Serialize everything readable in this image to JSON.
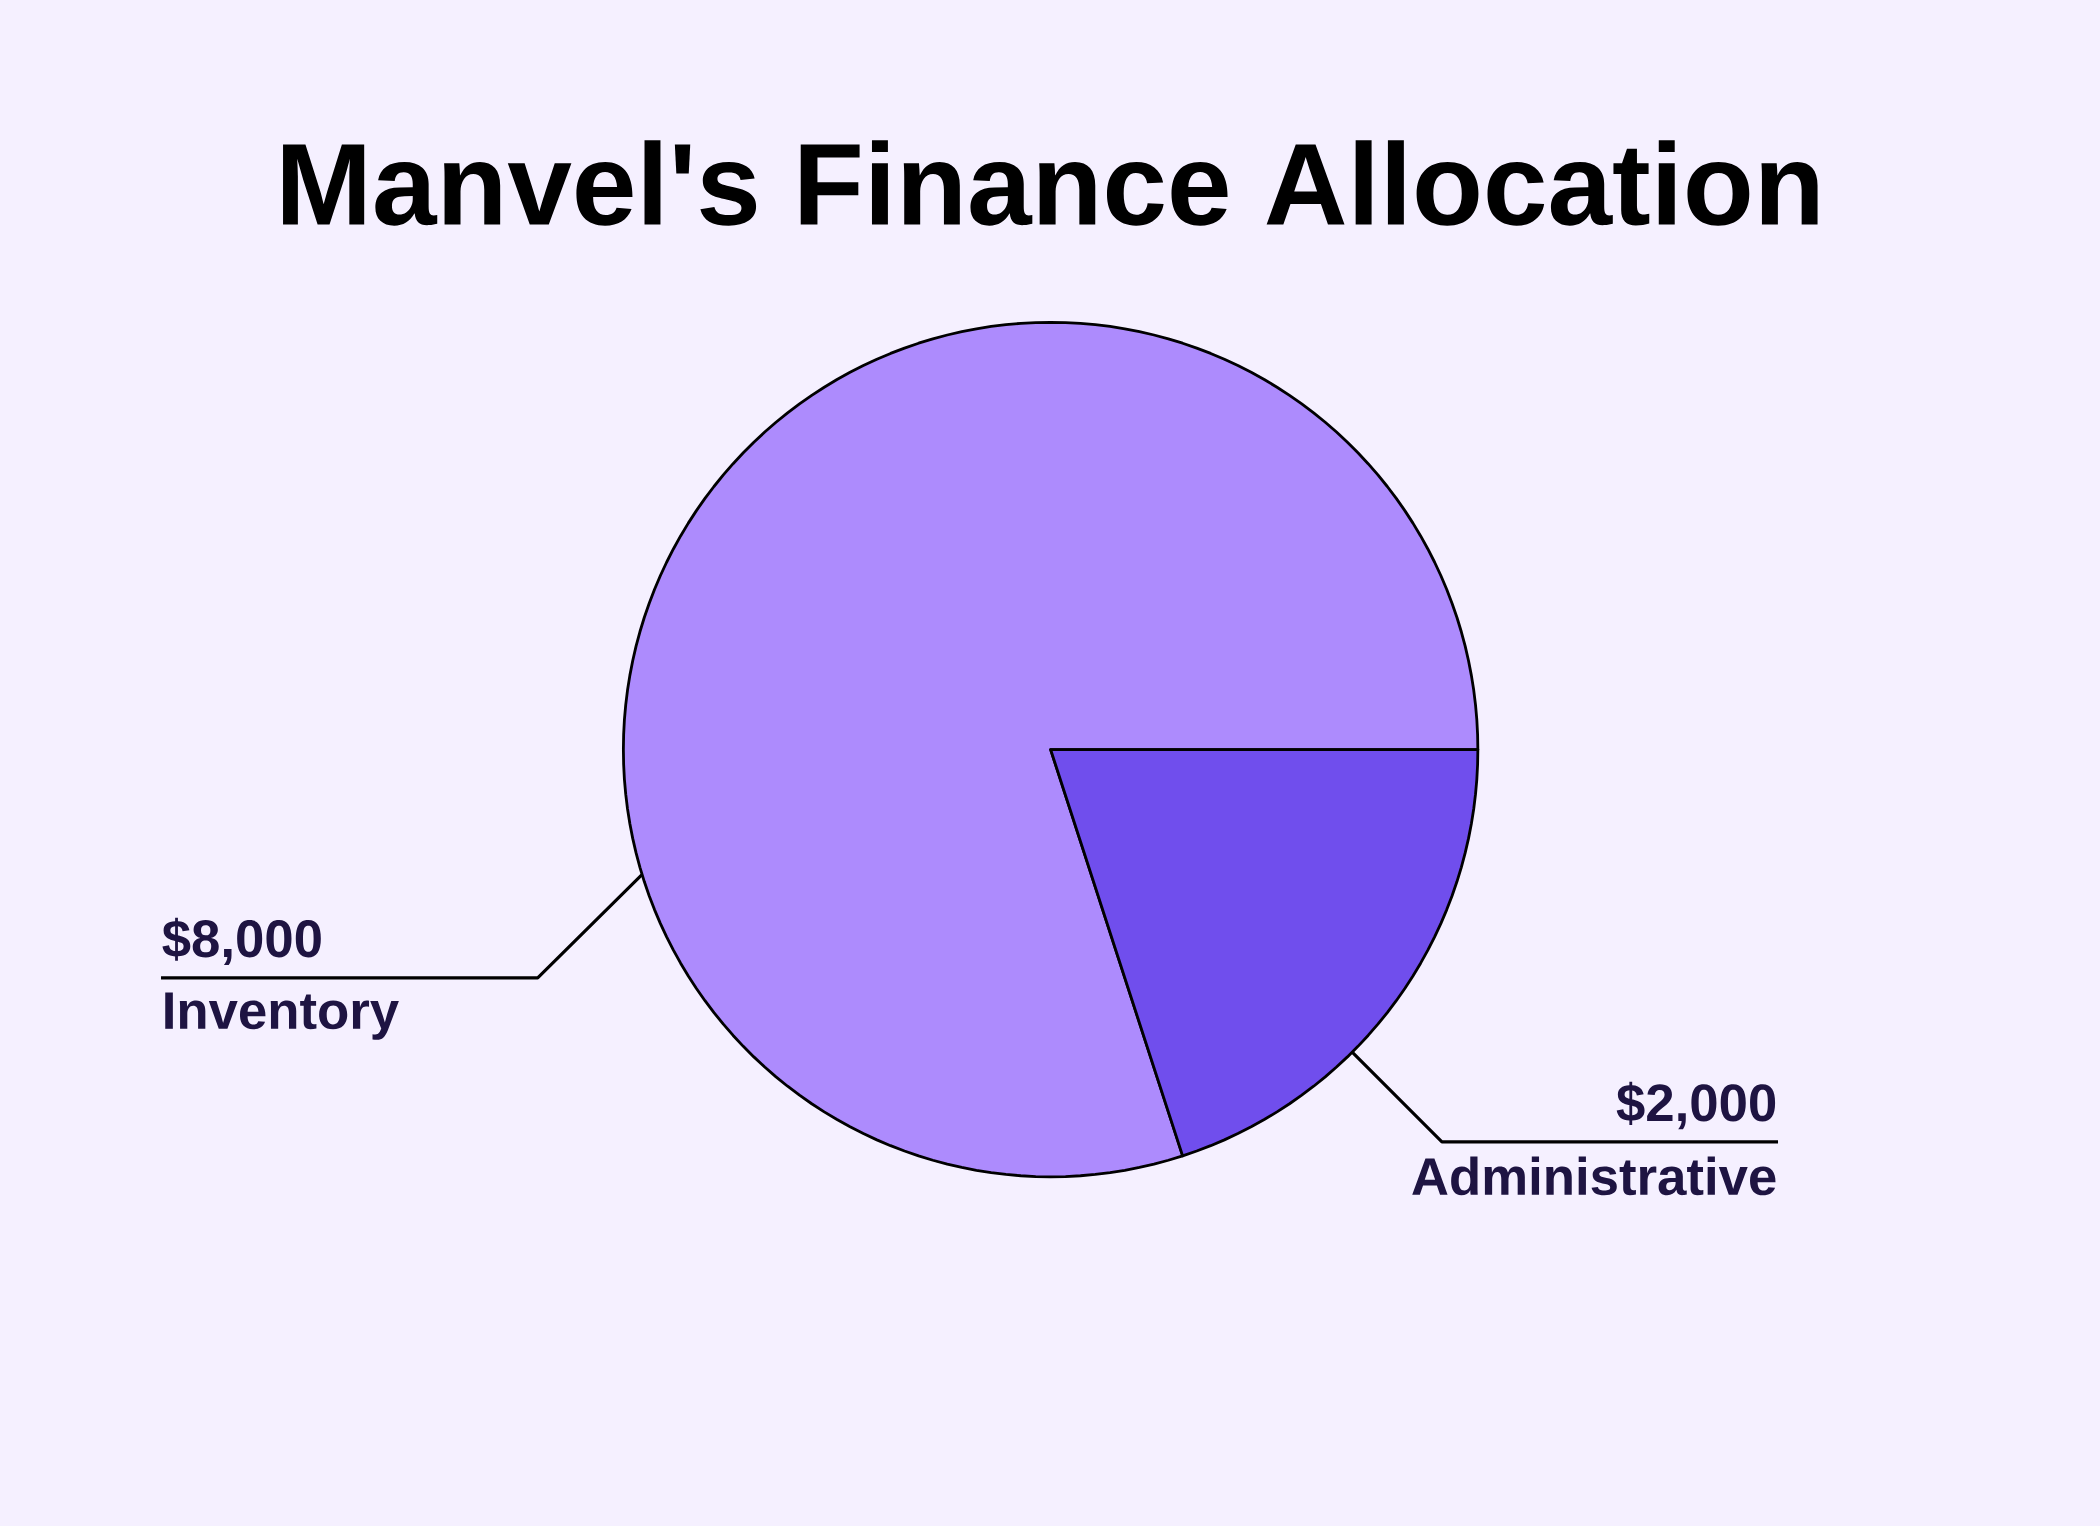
{
  "chart_data": {
    "type": "pie",
    "title": "Manvel's Finance Allocation",
    "categories": [
      "Inventory",
      "Administrative"
    ],
    "values": [
      8000,
      2000
    ],
    "value_labels": [
      "$8,000",
      "$2,000"
    ],
    "colors": [
      "#ad8bfd",
      "#704eed"
    ]
  }
}
